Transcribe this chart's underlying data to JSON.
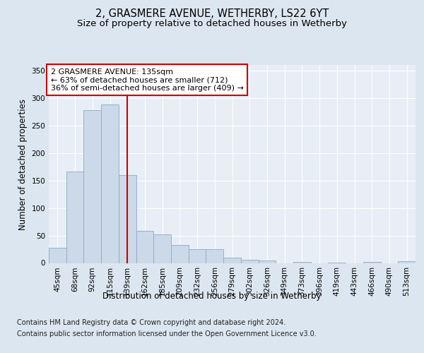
{
  "title": "2, GRASMERE AVENUE, WETHERBY, LS22 6YT",
  "subtitle": "Size of property relative to detached houses in Wetherby",
  "xlabel": "Distribution of detached houses by size in Wetherby",
  "ylabel": "Number of detached properties",
  "categories": [
    "45sqm",
    "68sqm",
    "92sqm",
    "115sqm",
    "139sqm",
    "162sqm",
    "185sqm",
    "209sqm",
    "232sqm",
    "256sqm",
    "279sqm",
    "302sqm",
    "326sqm",
    "349sqm",
    "373sqm",
    "396sqm",
    "419sqm",
    "443sqm",
    "466sqm",
    "490sqm",
    "513sqm"
  ],
  "values": [
    28,
    167,
    278,
    289,
    160,
    58,
    52,
    33,
    25,
    25,
    10,
    6,
    4,
    0,
    2,
    0,
    1,
    0,
    2,
    0,
    3
  ],
  "bar_color": "#ccd9e8",
  "bar_edge_color": "#8aaac8",
  "vline_x_index": 4,
  "vline_color": "#cc0000",
  "annotation_text": "2 GRASMERE AVENUE: 135sqm\n← 63% of detached houses are smaller (712)\n36% of semi-detached houses are larger (409) →",
  "annotation_box_color": "#ffffff",
  "annotation_box_edge_color": "#cc0000",
  "ylim": [
    0,
    360
  ],
  "yticks": [
    0,
    50,
    100,
    150,
    200,
    250,
    300,
    350
  ],
  "footer_line1": "Contains HM Land Registry data © Crown copyright and database right 2024.",
  "footer_line2": "Contains public sector information licensed under the Open Government Licence v3.0.",
  "background_color": "#dce6f0",
  "plot_bg_color": "#e8eef6",
  "title_fontsize": 10.5,
  "subtitle_fontsize": 9.5,
  "axis_label_fontsize": 8.5,
  "tick_fontsize": 7.5,
  "annotation_fontsize": 8,
  "footer_fontsize": 7
}
